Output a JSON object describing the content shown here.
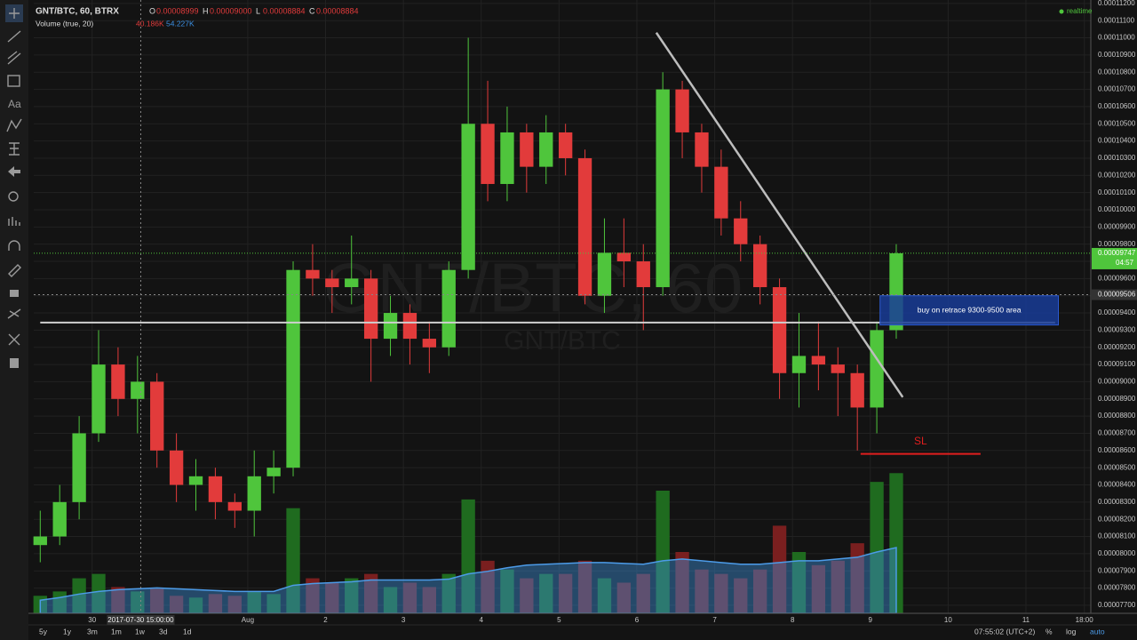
{
  "chart_data": {
    "type": "candlestick",
    "title": "GNT/BTC, 60, BTRX",
    "ohlc_legend": [
      {
        "key": "O",
        "text": "0.00008999"
      },
      {
        "key": "H",
        "text": "0.00009000"
      },
      {
        "key": "L",
        "text": "0.00008884"
      },
      {
        "key": "C",
        "text": "0.00008884"
      }
    ],
    "volume_legend": {
      "name": "Volume (true, 20)",
      "value": "40.186K",
      "ma": "54.227K"
    },
    "watermark": {
      "main": "GNT/BTC, 60",
      "sub": "GNT/BTC"
    },
    "status": "realtime",
    "crosshair": {
      "x": 31,
      "date_label": "2017-07-30 15:00:00",
      "price": {
        "value": 9.506e-05,
        "label": "0.00009506"
      }
    },
    "last_price": {
      "value": 9.747e-05,
      "label": "0.00009747"
    },
    "countdown": "04:57",
    "up_color": "#4fc53c",
    "down_color": "#e23b3b",
    "x": [
      0,
      6,
      12,
      18,
      24,
      30,
      36,
      42,
      48,
      54,
      60,
      66,
      72,
      78,
      84,
      90,
      96,
      102,
      108,
      114,
      120,
      126,
      132,
      138,
      144,
      150,
      156,
      162,
      168,
      174,
      180,
      186,
      192,
      198,
      204,
      210,
      216,
      222,
      228,
      234,
      240,
      246,
      252,
      258,
      264
    ],
    "open": [
      8.05e-05,
      8.1e-05,
      8.3e-05,
      8.7e-05,
      9.1e-05,
      8.9e-05,
      9e-05,
      8.6e-05,
      8.4e-05,
      8.45e-05,
      8.3e-05,
      8.25e-05,
      8.45e-05,
      8.5e-05,
      9.65e-05,
      9.6e-05,
      9.55e-05,
      9.6e-05,
      9.25e-05,
      9.4e-05,
      9.25e-05,
      9.2e-05,
      9.65e-05,
      0.000105,
      0.0001015,
      0.0001045,
      0.0001025,
      0.0001045,
      0.000103,
      9.5e-05,
      9.75e-05,
      9.7e-05,
      9.55e-05,
      0.000107,
      0.0001045,
      0.0001025,
      9.95e-05,
      9.8e-05,
      9.55e-05,
      9.05e-05,
      9.15e-05,
      9.1e-05,
      9.05e-05,
      8.85e-05,
      9.3e-05
    ],
    "high": [
      8.25e-05,
      8.4e-05,
      8.8e-05,
      9.3e-05,
      9.2e-05,
      9.15e-05,
      9.05e-05,
      8.7e-05,
      8.55e-05,
      8.5e-05,
      8.35e-05,
      8.6e-05,
      8.6e-05,
      9.7e-05,
      9.8e-05,
      9.65e-05,
      9.85e-05,
      9.65e-05,
      9.5e-05,
      9.45e-05,
      9.35e-05,
      9.7e-05,
      0.00011,
      0.0001075,
      0.000106,
      0.000105,
      0.0001055,
      0.000105,
      0.0001035,
      9.95e-05,
      9.95e-05,
      9.8e-05,
      0.000108,
      0.0001075,
      0.000105,
      0.0001035,
      0.0001005,
      9.85e-05,
      9.6e-05,
      9.4e-05,
      9.35e-05,
      9.2e-05,
      9.1e-05,
      9.35e-05,
      9.8e-05
    ],
    "low": [
      7.95e-05,
      8.05e-05,
      8.2e-05,
      8.65e-05,
      8.8e-05,
      8.7e-05,
      8.5e-05,
      8.3e-05,
      8.25e-05,
      8.2e-05,
      8.15e-05,
      8.1e-05,
      8.35e-05,
      8.45e-05,
      9.5e-05,
      9.4e-05,
      9.45e-05,
      9e-05,
      9.15e-05,
      9.1e-05,
      9.05e-05,
      9.15e-05,
      9.6e-05,
      0.0001005,
      0.0001005,
      0.000101,
      0.0001015,
      0.000102,
      9.45e-05,
      9.4e-05,
      9.55e-05,
      9.3e-05,
      9.5e-05,
      0.000103,
      0.000101,
      9.85e-05,
      9.7e-05,
      9.45e-05,
      8.9e-05,
      8.85e-05,
      8.95e-05,
      8.8e-05,
      8.6e-05,
      8.7e-05,
      9.25e-05
    ],
    "close": [
      8.1e-05,
      8.3e-05,
      8.7e-05,
      9.1e-05,
      8.9e-05,
      9e-05,
      8.6e-05,
      8.4e-05,
      8.45e-05,
      8.3e-05,
      8.25e-05,
      8.45e-05,
      8.5e-05,
      9.65e-05,
      9.6e-05,
      9.55e-05,
      9.6e-05,
      9.25e-05,
      9.4e-05,
      9.25e-05,
      9.2e-05,
      9.65e-05,
      0.000105,
      0.0001015,
      0.0001045,
      0.0001025,
      0.0001045,
      0.000103,
      9.5e-05,
      9.75e-05,
      9.7e-05,
      9.55e-05,
      0.000107,
      0.0001045,
      0.0001025,
      9.95e-05,
      9.8e-05,
      9.55e-05,
      9.05e-05,
      9.15e-05,
      9.1e-05,
      9.05e-05,
      8.85e-05,
      9.3e-05,
      9.747e-05
    ],
    "volume": {
      "values": [
        20,
        25,
        40,
        45,
        30,
        25,
        28,
        20,
        18,
        22,
        20,
        25,
        22,
        120,
        40,
        35,
        40,
        45,
        30,
        35,
        30,
        45,
        130,
        60,
        50,
        40,
        45,
        45,
        60,
        40,
        35,
        45,
        140,
        70,
        50,
        45,
        40,
        50,
        100,
        70,
        55,
        60,
        80,
        150,
        160
      ],
      "ma": [
        15,
        18,
        22,
        25,
        27,
        28,
        29,
        28,
        27,
        26,
        25,
        25,
        25,
        32,
        34,
        35,
        36,
        38,
        38,
        38,
        38,
        39,
        45,
        48,
        52,
        55,
        56,
        57,
        58,
        58,
        57,
        56,
        60,
        62,
        60,
        58,
        56,
        56,
        58,
        60,
        60,
        62,
        64,
        70,
        75
      ],
      "vlim": [
        0,
        700
      ]
    },
    "xlim": [
      -2,
      324
    ],
    "xticks": [
      {
        "value": 16,
        "label": "30"
      },
      {
        "value": 64,
        "label": "Aug"
      },
      {
        "value": 88,
        "label": "2"
      },
      {
        "value": 112,
        "label": "3"
      },
      {
        "value": 136,
        "label": "4"
      },
      {
        "value": 160,
        "label": "5"
      },
      {
        "value": 184,
        "label": "6"
      },
      {
        "value": 208,
        "label": "7"
      },
      {
        "value": 232,
        "label": "8"
      },
      {
        "value": 256,
        "label": "9"
      },
      {
        "value": 280,
        "label": "10"
      },
      {
        "value": 304,
        "label": "11"
      },
      {
        "value": 322,
        "label": "18:00"
      }
    ],
    "ylim": [
      7.653e-05,
      0.0001122
    ],
    "yticks": [
      {
        "value": 0.000112,
        "label": "0.00011200"
      },
      {
        "value": 0.000111,
        "label": "0.00011100"
      },
      {
        "value": 0.00011,
        "label": "0.00011000"
      },
      {
        "value": 0.000109,
        "label": "0.00010900"
      },
      {
        "value": 0.000108,
        "label": "0.00010800"
      },
      {
        "value": 0.000107,
        "label": "0.00010700"
      },
      {
        "value": 0.000106,
        "label": "0.00010600"
      },
      {
        "value": 0.000105,
        "label": "0.00010500"
      },
      {
        "value": 0.000104,
        "label": "0.00010400"
      },
      {
        "value": 0.000103,
        "label": "0.00010300"
      },
      {
        "value": 0.000102,
        "label": "0.00010200"
      },
      {
        "value": 0.000101,
        "label": "0.00010100"
      },
      {
        "value": 0.0001,
        "label": "0.00010000"
      },
      {
        "value": 9.9e-05,
        "label": "0.00009900"
      },
      {
        "value": 9.8e-05,
        "label": "0.00009800"
      },
      {
        "value": 9.7e-05,
        "label": "0.00009700"
      },
      {
        "value": 9.6e-05,
        "label": "0.00009600"
      },
      {
        "value": 9.5e-05,
        "label": "0.00009500"
      },
      {
        "value": 9.4e-05,
        "label": "0.00009400"
      },
      {
        "value": 9.3e-05,
        "label": "0.00009300"
      },
      {
        "value": 9.2e-05,
        "label": "0.00009200"
      },
      {
        "value": 9.1e-05,
        "label": "0.00009100"
      },
      {
        "value": 9e-05,
        "label": "0.00009000"
      },
      {
        "value": 8.9e-05,
        "label": "0.00008900"
      },
      {
        "value": 8.8e-05,
        "label": "0.00008800"
      },
      {
        "value": 8.7e-05,
        "label": "0.00008700"
      },
      {
        "value": 8.6e-05,
        "label": "0.00008600"
      },
      {
        "value": 8.5e-05,
        "label": "0.00008500"
      },
      {
        "value": 8.4e-05,
        "label": "0.00008400"
      },
      {
        "value": 8.3e-05,
        "label": "0.00008300"
      },
      {
        "value": 8.2e-05,
        "label": "0.00008200"
      },
      {
        "value": 8.1e-05,
        "label": "0.00008100"
      },
      {
        "value": 8e-05,
        "label": "0.00008000"
      },
      {
        "value": 7.9e-05,
        "label": "0.00007900"
      },
      {
        "value": 7.8e-05,
        "label": "0.00007800"
      },
      {
        "value": 7.7e-05,
        "label": "0.00007700"
      }
    ],
    "grid": true,
    "drawings": {
      "trend_line": {
        "x": [
          190,
          266
        ],
        "y": [
          0.0001103,
          8.91e-05
        ]
      },
      "support_line": {
        "x": [
          0,
          313
        ],
        "y": [
          9.344e-05,
          9.344e-05
        ]
      },
      "stop_loss": {
        "label": "SL",
        "x": [
          253,
          290
        ],
        "y": [
          8.58e-05,
          8.58e-05
        ]
      },
      "buy_zone": {
        "label": "buy on retrace 9300-9500 area",
        "x": [
          259,
          314
        ],
        "y": [
          9.5e-05,
          9.33e-05
        ]
      }
    },
    "intervals": [
      "5y",
      "1y",
      "3m",
      "1m",
      "1w",
      "3d",
      "1d"
    ],
    "footer": {
      "clock": "07:55:02 (UTC+2)",
      "percent": "%",
      "log": "log",
      "auto": "auto"
    }
  }
}
